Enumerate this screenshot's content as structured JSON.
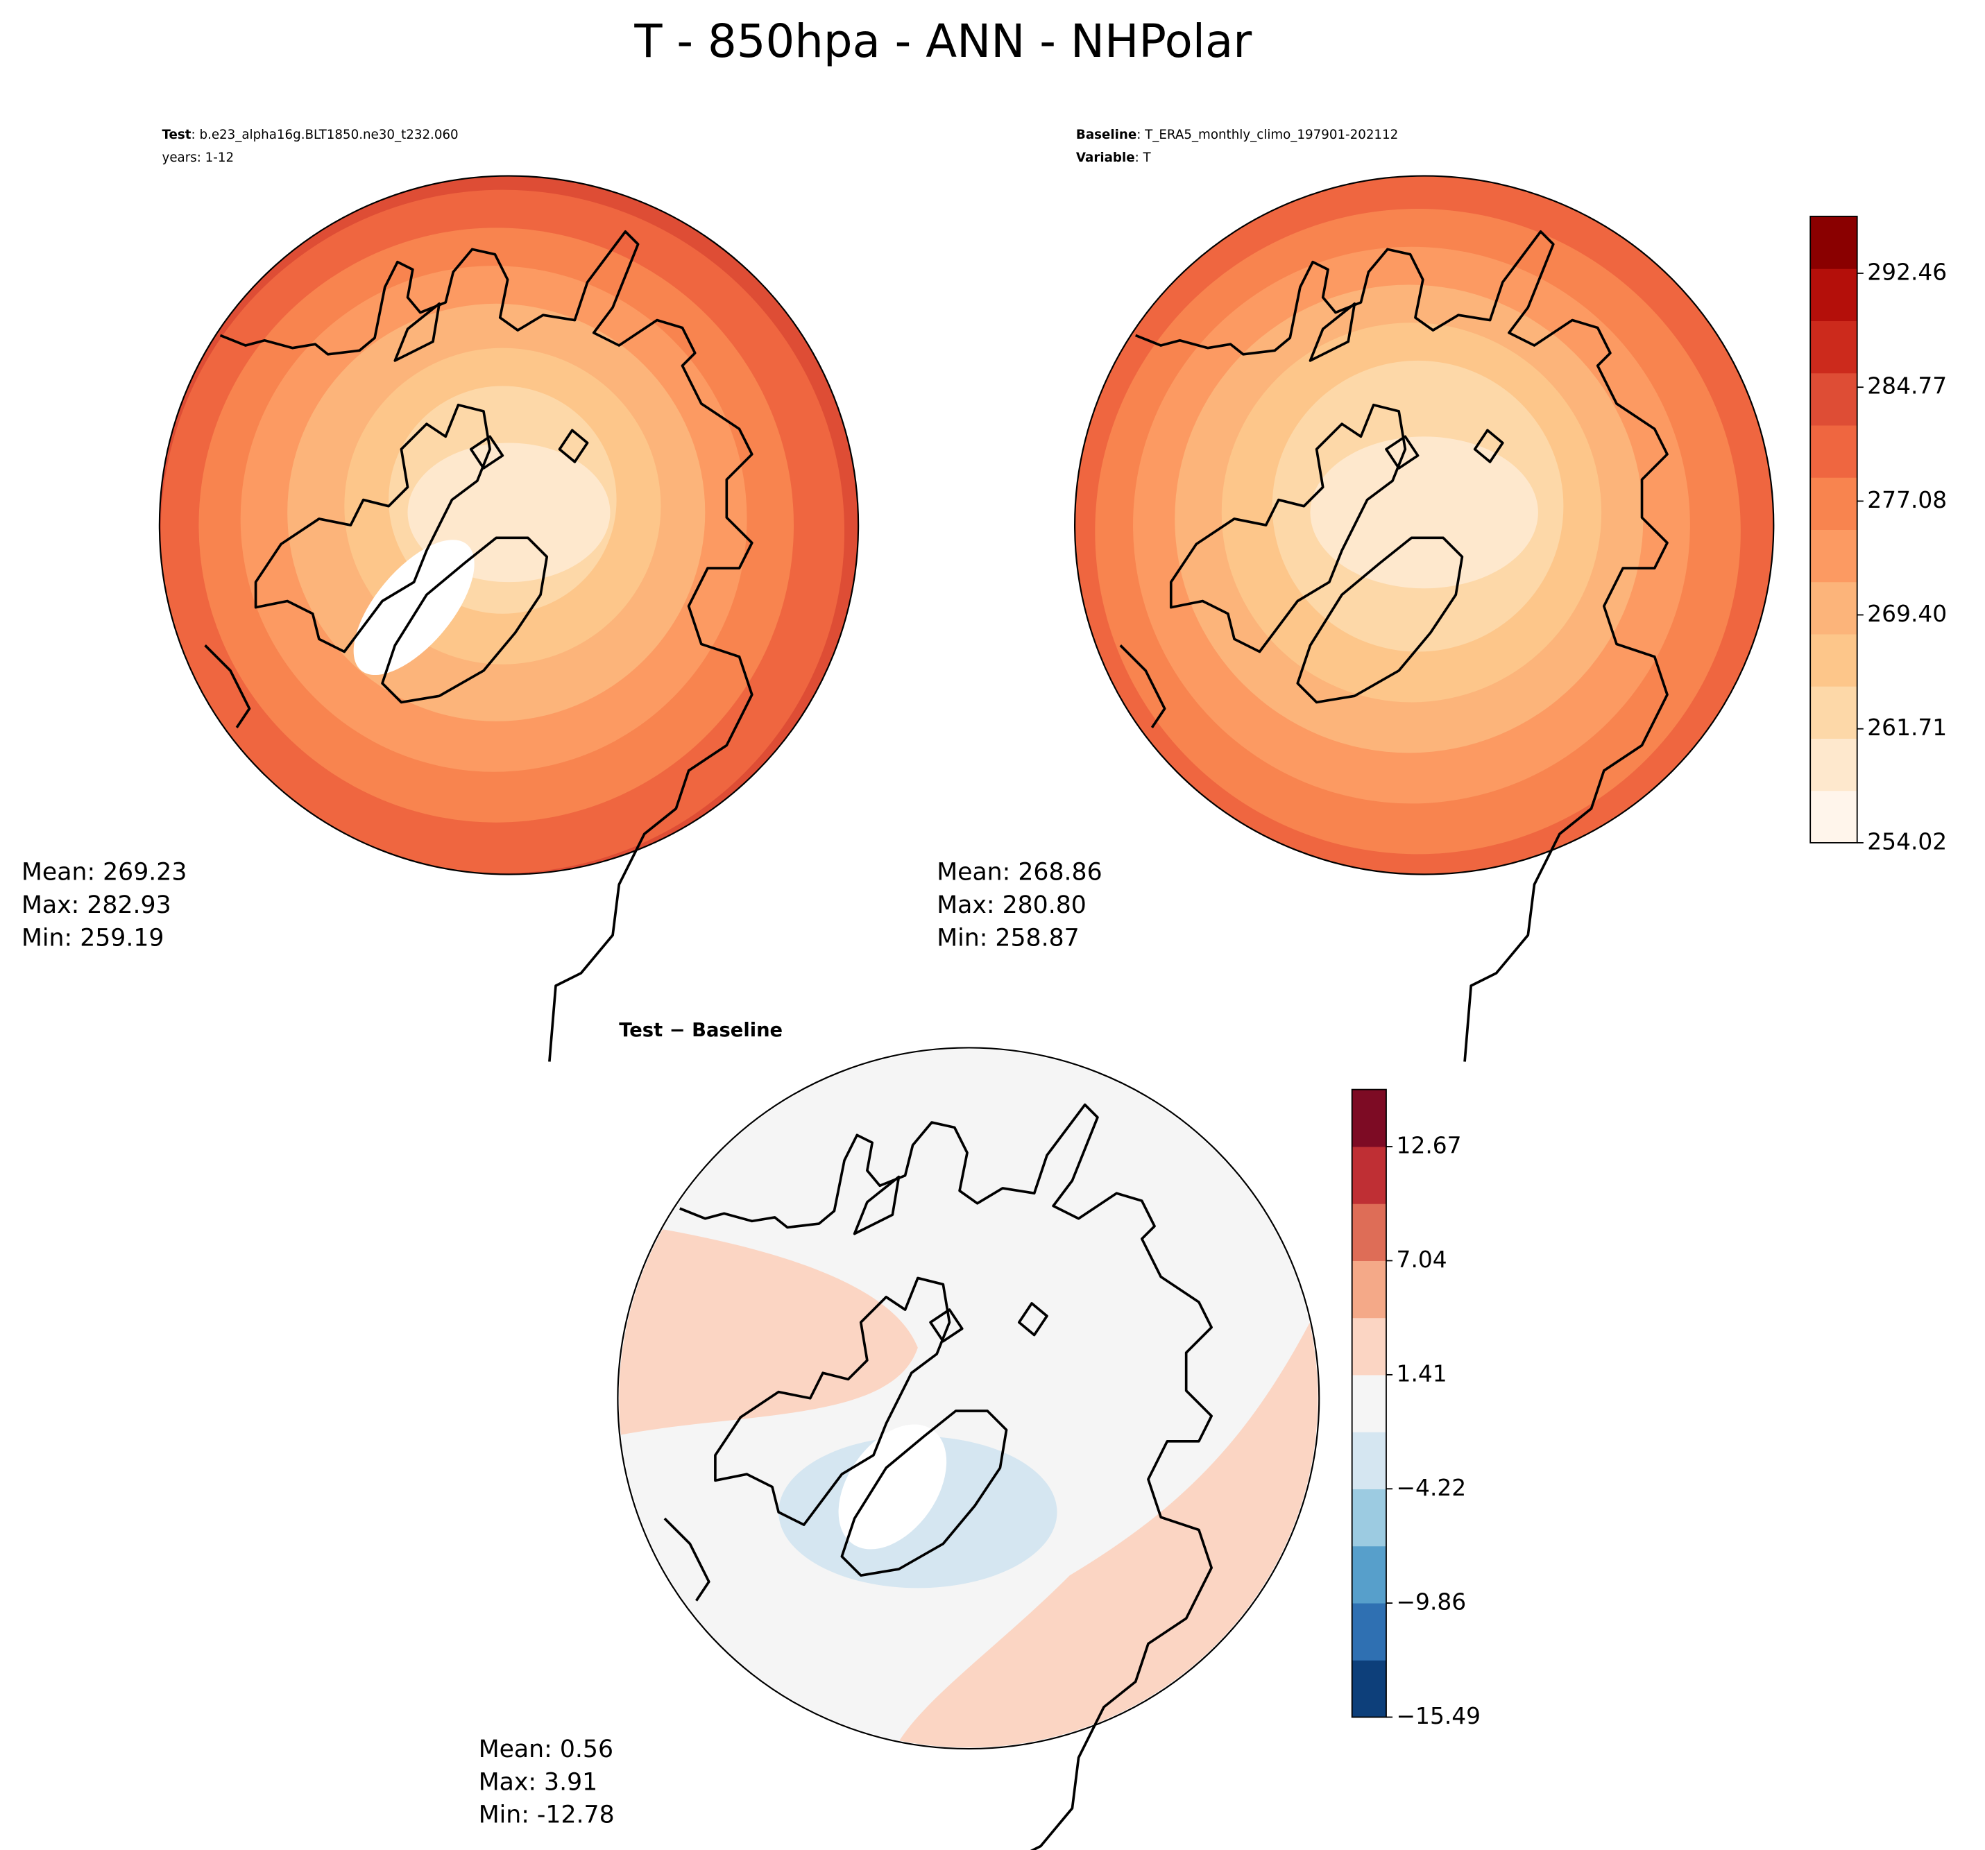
{
  "title": "T - 850hpa - ANN - NHPolar",
  "panels": [
    {
      "header": [
        {
          "key": "Test",
          "text": ": b.e23_alpha16g.BLT1850.ne30_t232.060"
        },
        {
          "text": "years: 1-12"
        }
      ],
      "stats": [
        "Mean: 269.23",
        "Max: 282.93",
        "Min: 259.19"
      ]
    },
    {
      "header": [
        {
          "key": "Baseline",
          "text": ": T_ERA5_monthly_climo_197901-202112"
        },
        {
          "key": "Variable",
          "text": ": T"
        }
      ],
      "stats": [
        "Mean: 268.86",
        "Max: 280.80",
        "Min: 258.87"
      ]
    },
    {
      "title": "Test − Baseline",
      "stats": [
        "Mean:  0.56",
        "Max:  3.91",
        "Min: -12.78"
      ]
    }
  ],
  "colorbars": [
    {
      "range": [
        254.02,
        296.3
      ],
      "colors": [
        "#fff5eb",
        "#fee8cd",
        "#fdd8a8",
        "#fdc68a",
        "#fcb47a",
        "#fc9a62",
        "#f8844f",
        "#ef6640",
        "#de4d35",
        "#cc2a1c",
        "#b40f0a",
        "#8a0000"
      ],
      "ticks": [
        254.02,
        261.71,
        {
          "value": 269.4,
          "label": "269.40"
        },
        277.08,
        284.77,
        292.46
      ]
    },
    {
      "range": [
        -15.49,
        15.49
      ],
      "colors": [
        "#0d3f7a",
        "#2f70b2",
        "#579fcb",
        "#9ccbe1",
        "#d5e6f1",
        "#f5f5f5",
        "#fbd5c3",
        "#f4a988",
        "#de6d57",
        "#bf2f34",
        "#7d0b24"
      ],
      "ticks": [
        {
          "value": -15.49,
          "label": "−15.49"
        },
        {
          "value": -9.86,
          "label": "−9.86"
        },
        {
          "value": -4.22,
          "label": "−4.22"
        },
        1.41,
        7.04,
        12.67
      ]
    }
  ]
}
